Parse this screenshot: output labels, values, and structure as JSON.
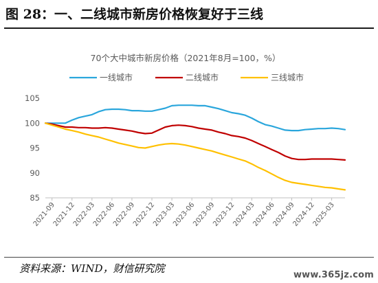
{
  "figure": {
    "title": "图 28：一、二线城市新房价格恢复好于三线",
    "source": "资料来源：WIND，财信研究院",
    "watermark": "www.365jz.com"
  },
  "colors": {
    "tier1": "#2aa6dc",
    "tier2": "#c00000",
    "tier3": "#ffc000",
    "axis": "#bfbfbf",
    "text": "#595959"
  },
  "chart_data": {
    "type": "line",
    "title": "70个大中城市新房价格（2021年8月=100，%）",
    "xlabel": "",
    "ylabel": "",
    "ylim": [
      85,
      105
    ],
    "yticks": [
      85,
      90,
      95,
      100,
      105
    ],
    "grid": false,
    "legend_position": "top",
    "x": [
      "2021-08",
      "2021-09",
      "2021-10",
      "2021-11",
      "2021-12",
      "2022-01",
      "2022-02",
      "2022-03",
      "2022-04",
      "2022-05",
      "2022-06",
      "2022-07",
      "2022-08",
      "2022-09",
      "2022-10",
      "2022-11",
      "2022-12",
      "2023-01",
      "2023-02",
      "2023-03",
      "2023-04",
      "2023-05",
      "2023-06",
      "2023-07",
      "2023-08",
      "2023-09",
      "2023-10",
      "2023-11",
      "2023-12",
      "2024-01",
      "2024-02",
      "2024-03",
      "2024-04",
      "2024-05",
      "2024-06",
      "2024-07",
      "2024-08",
      "2024-09",
      "2024-10",
      "2024-11",
      "2024-12",
      "2025-01",
      "2025-02",
      "2025-03",
      "2025-04",
      "2025-05"
    ],
    "xtick_labels": [
      "2021-09",
      "2021-12",
      "2022-03",
      "2022-06",
      "2022-09",
      "2022-12",
      "2023-03",
      "2023-06",
      "2023-09",
      "2023-12",
      "2024-03",
      "2024-06",
      "2024-09",
      "2024-12",
      "2025-03"
    ],
    "series": [
      {
        "name": "一线城市",
        "color_key": "tier1",
        "values": [
          100.0,
          100.0,
          100.0,
          100.0,
          100.6,
          101.1,
          101.4,
          101.7,
          102.3,
          102.7,
          102.8,
          102.8,
          102.7,
          102.5,
          102.5,
          102.4,
          102.4,
          102.7,
          103.0,
          103.5,
          103.6,
          103.6,
          103.6,
          103.5,
          103.5,
          103.2,
          102.9,
          102.5,
          102.1,
          101.9,
          101.6,
          101.0,
          100.3,
          99.7,
          99.4,
          99.0,
          98.6,
          98.5,
          98.5,
          98.7,
          98.8,
          98.9,
          98.9,
          99.0,
          98.9,
          98.7
        ]
      },
      {
        "name": "二线城市",
        "color_key": "tier2",
        "values": [
          100.0,
          99.8,
          99.5,
          99.2,
          99.2,
          99.1,
          99.1,
          99.0,
          99.0,
          99.1,
          99.0,
          98.8,
          98.6,
          98.4,
          98.1,
          97.9,
          98.0,
          98.6,
          99.2,
          99.5,
          99.6,
          99.5,
          99.3,
          99.0,
          98.8,
          98.6,
          98.2,
          97.9,
          97.5,
          97.3,
          97.0,
          96.5,
          95.9,
          95.3,
          94.7,
          94.1,
          93.4,
          92.9,
          92.7,
          92.7,
          92.8,
          92.8,
          92.8,
          92.8,
          92.7,
          92.6
        ]
      },
      {
        "name": "三线城市",
        "color_key": "tier3",
        "values": [
          100.0,
          99.6,
          99.2,
          98.8,
          98.5,
          98.2,
          97.8,
          97.5,
          97.2,
          96.8,
          96.4,
          96.0,
          95.7,
          95.4,
          95.1,
          95.0,
          95.3,
          95.6,
          95.8,
          95.9,
          95.8,
          95.6,
          95.3,
          95.0,
          94.7,
          94.4,
          94.0,
          93.6,
          93.2,
          92.8,
          92.4,
          91.8,
          91.1,
          90.5,
          89.8,
          89.1,
          88.5,
          88.1,
          87.9,
          87.7,
          87.5,
          87.3,
          87.1,
          87.0,
          86.8,
          86.6
        ]
      }
    ]
  }
}
